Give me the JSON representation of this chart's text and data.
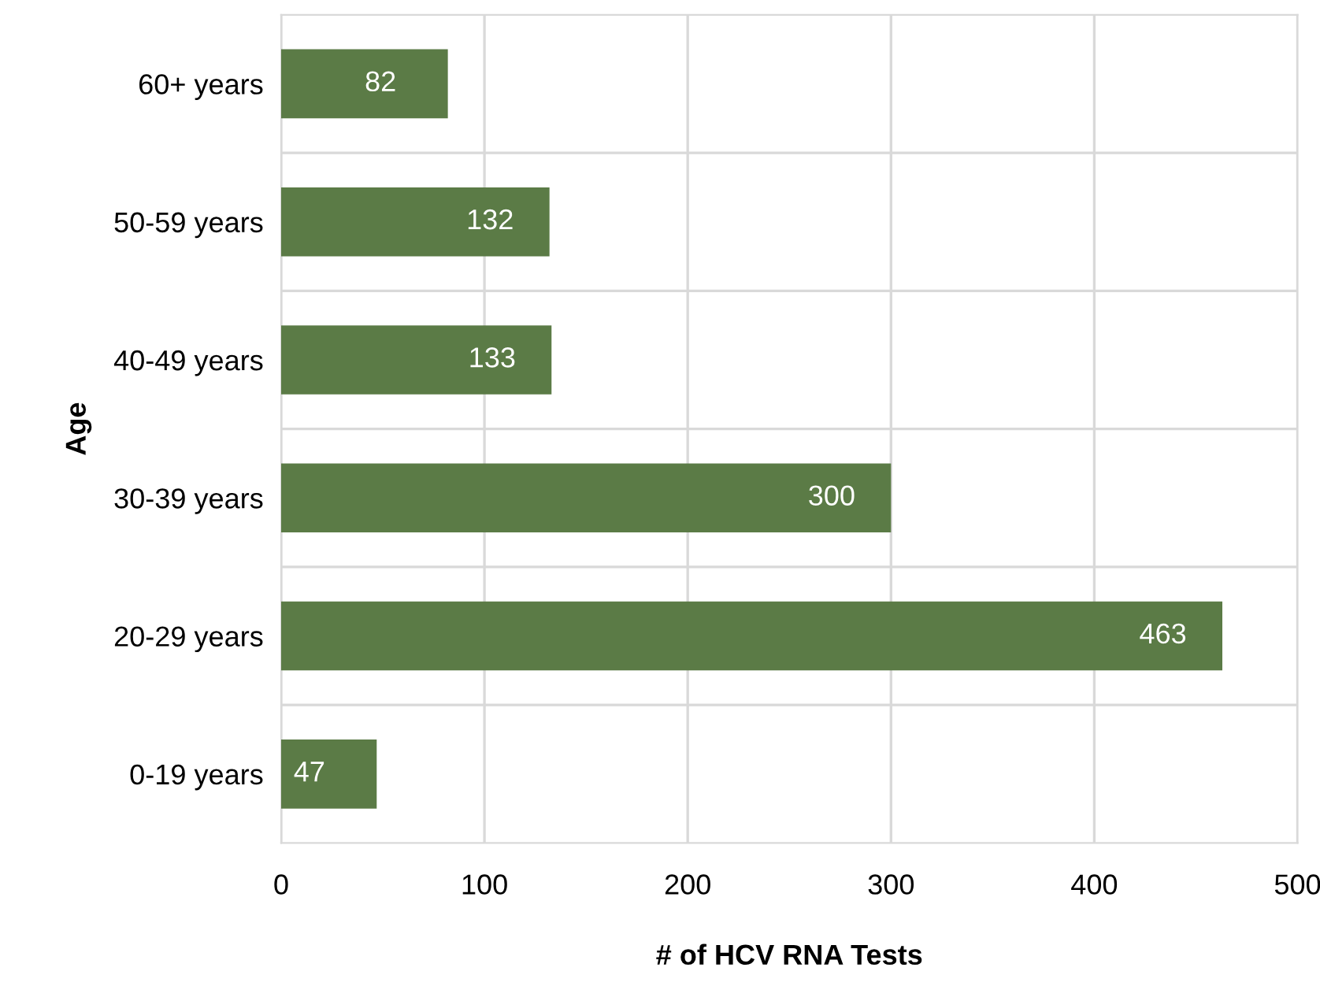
{
  "chart_data": {
    "type": "bar",
    "orientation": "horizontal",
    "xlabel": "# of HCV RNA Tests",
    "ylabel": "Age",
    "categories": [
      "60+ years",
      "50-59 years",
      "40-49 years",
      "30-39 years",
      "20-29 years",
      "0-19 years"
    ],
    "values": [
      82,
      132,
      133,
      300,
      463,
      47
    ],
    "color": "#5b7b46",
    "xlim": [
      0,
      500
    ],
    "xticks": [
      0,
      100,
      200,
      300,
      400,
      500
    ],
    "grid": true,
    "data_labels": true
  }
}
